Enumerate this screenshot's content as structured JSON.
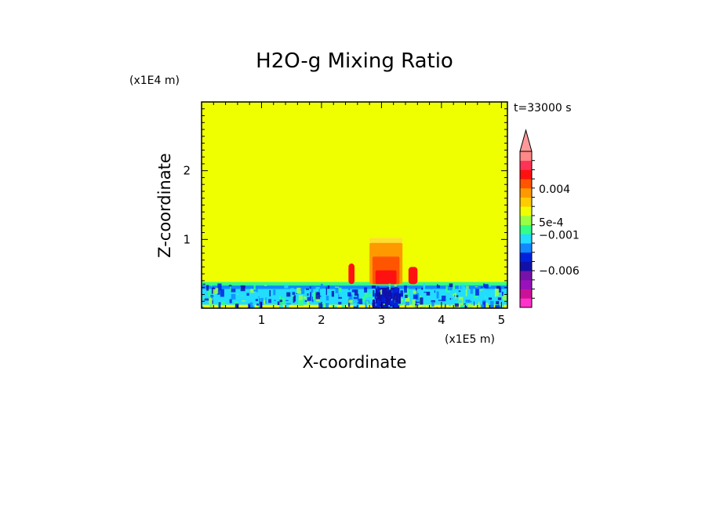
{
  "chart_data": {
    "type": "heatmap",
    "title": "H2O-g Mixing Ratio",
    "xlabel": "X-coordinate",
    "ylabel": "Z-coordinate",
    "x_unit": "(x1E5 m)",
    "z_unit": "(x1E4 m)",
    "time_label": "t=33000 s",
    "x_ticks": [
      {
        "value": 1,
        "label": "1"
      },
      {
        "value": 2,
        "label": "2"
      },
      {
        "value": 3,
        "label": "3"
      },
      {
        "value": 4,
        "label": "4"
      },
      {
        "value": 5,
        "label": "5"
      }
    ],
    "z_ticks": [
      {
        "value": 1,
        "label": "1"
      },
      {
        "value": 2,
        "label": "2"
      }
    ],
    "xlim": [
      0,
      5.1
    ],
    "zlim": [
      0,
      3.0
    ],
    "colorbar": {
      "colors": [
        "#ff33cc",
        "#cc1199",
        "#9911bb",
        "#7711aa",
        "#1111aa",
        "#0022dd",
        "#1188ff",
        "#22ddff",
        "#33ff88",
        "#99ff44",
        "#f0ff00",
        "#ffcc00",
        "#ff9900",
        "#ff5500",
        "#ff1111",
        "#ff3355",
        "#ff8888"
      ],
      "labels": [
        {
          "text": "0.004",
          "level": 0.76
        },
        {
          "text": "5e-4",
          "level": 0.545
        },
        {
          "text": "−0.001",
          "level": 0.465
        },
        {
          "text": "−0.006",
          "level": 0.235
        }
      ],
      "extend": "max"
    },
    "background_level_color": "#f0ff00",
    "regions": [
      {
        "color": "#ffdd33",
        "x": [
          2.8,
          3.35
        ],
        "z": [
          0.95,
          1.02
        ]
      },
      {
        "color": "#ff9900",
        "x": [
          2.8,
          3.35
        ],
        "z": [
          0.35,
          0.95
        ]
      },
      {
        "color": "#ff5500",
        "x": [
          2.85,
          3.3
        ],
        "z": [
          0.35,
          0.75
        ]
      },
      {
        "color": "#ff1111",
        "x": [
          2.9,
          3.25
        ],
        "z": [
          0.35,
          0.55
        ]
      },
      {
        "color": "#ff1111",
        "x": [
          2.45,
          2.55
        ],
        "z": [
          0.35,
          0.65
        ]
      },
      {
        "color": "#ff1111",
        "x": [
          3.45,
          3.6
        ],
        "z": [
          0.35,
          0.6
        ]
      },
      {
        "color": "#22ddff",
        "x": [
          0,
          5.1
        ],
        "z": [
          0.05,
          0.33
        ]
      },
      {
        "color": "#1188ff",
        "x": [
          0,
          5.1
        ],
        "z": [
          0.28,
          0.36
        ]
      },
      {
        "color": "#33ff88",
        "x": [
          0,
          5.1
        ],
        "z": [
          0.33,
          0.38
        ]
      },
      {
        "color": "#1111aa",
        "x": [
          2.9,
          3.3
        ],
        "z": [
          0,
          0.3
        ]
      }
    ]
  }
}
